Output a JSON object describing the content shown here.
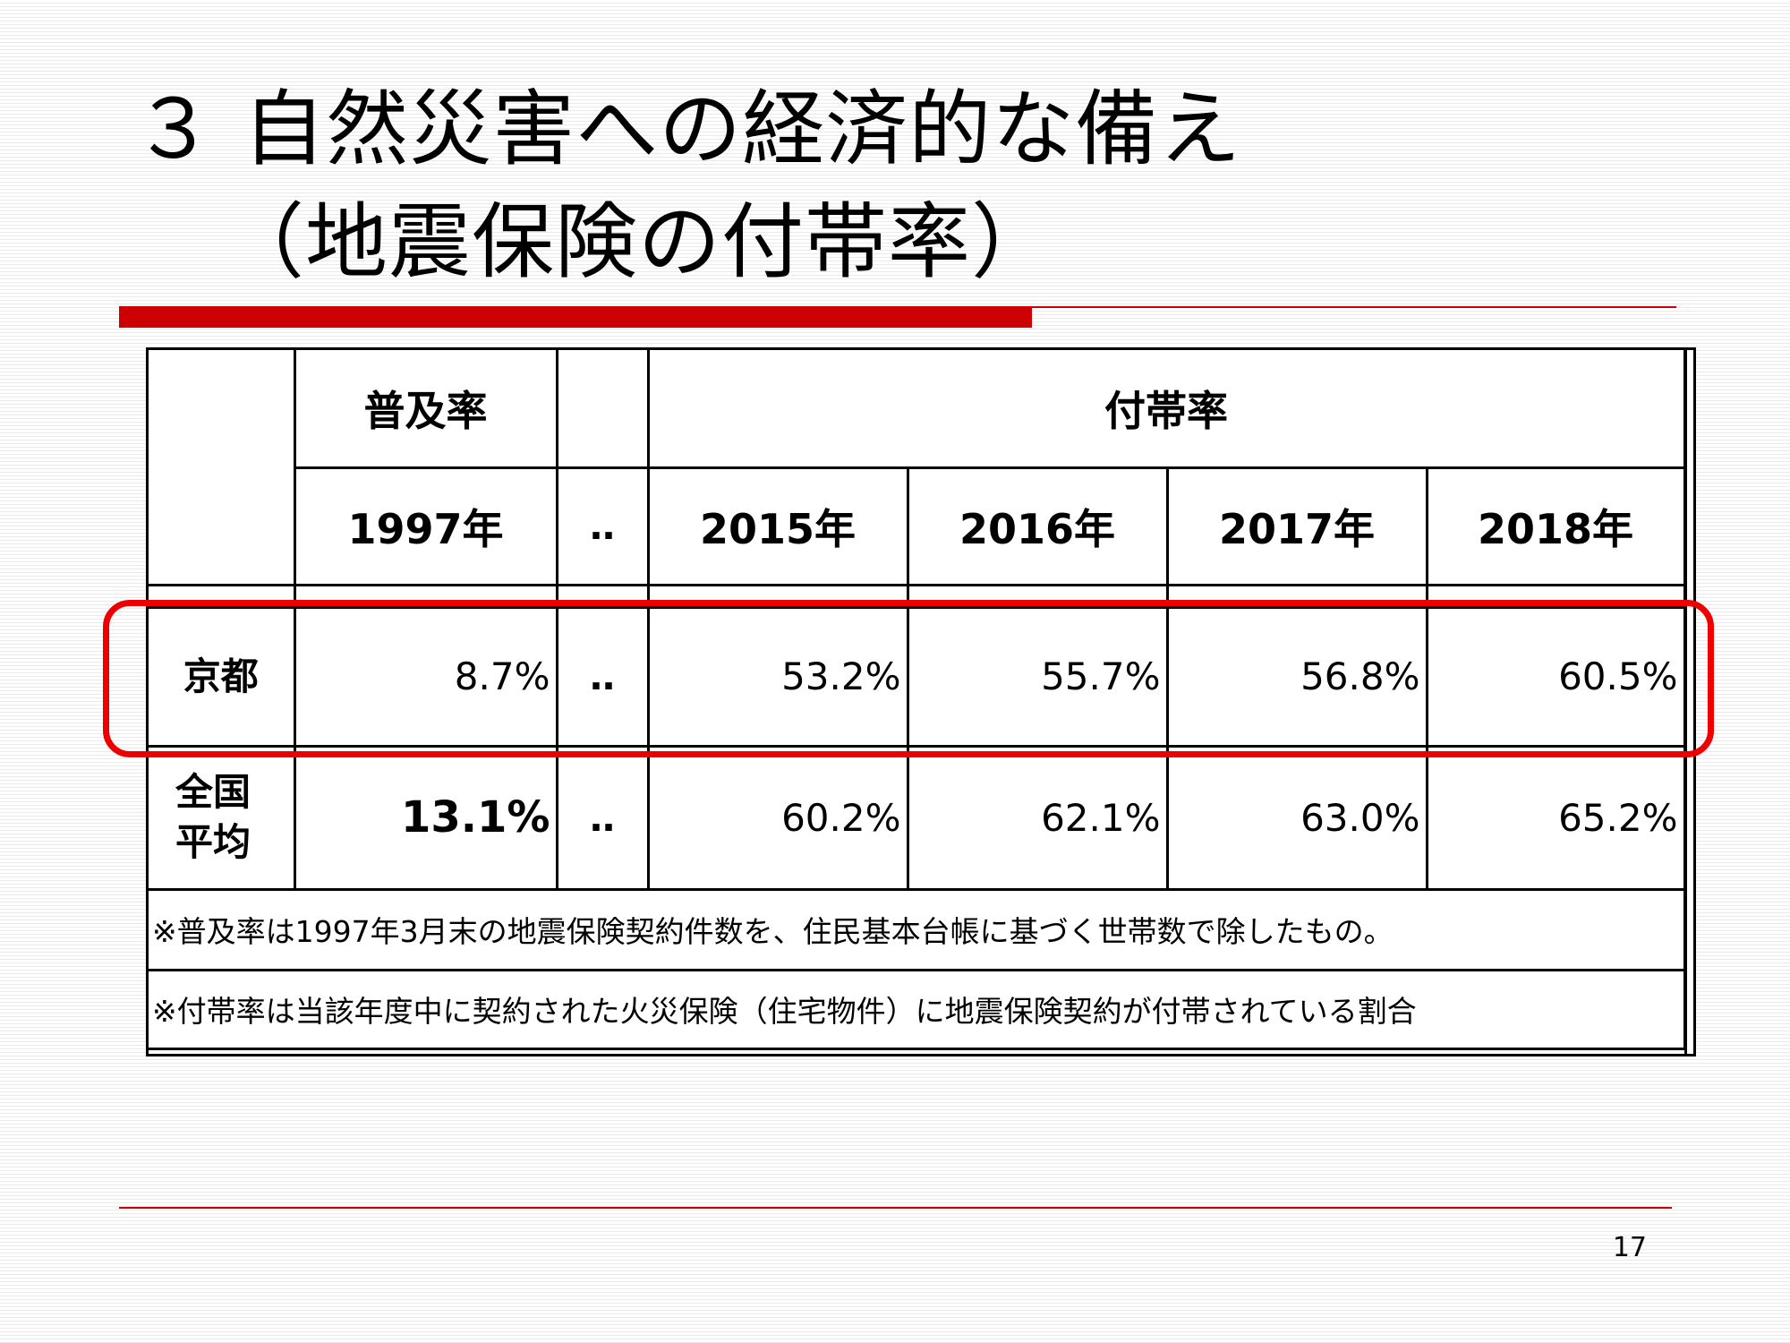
{
  "title": {
    "line1": "３ 自然災害への経済的な備え",
    "line2": "（地震保険の付帯率）"
  },
  "table": {
    "header_fukyu": "普及率",
    "header_futai": "付帯率",
    "years": [
      "1997年",
      "‥",
      "2015年",
      "2016年",
      "2017年",
      "2018年"
    ],
    "rows": [
      {
        "label": "京都",
        "values": [
          "8.7%",
          "‥",
          "53.2%",
          "55.7%",
          "56.8%",
          "60.5%"
        ]
      },
      {
        "label": "全国平均",
        "values": [
          "13.1%",
          "‥",
          "60.2%",
          "62.1%",
          "63.0%",
          "65.2%"
        ]
      }
    ],
    "notes": [
      "※普及率は1997年3月末の地震保険契約件数を、住民基本台帳に基づく世帯数で除したもの。",
      "※付帯率は当該年度中に契約された火災保険（住宅物件）に地震保険契約が付帯されている割合"
    ]
  },
  "colors": {
    "accent": "#cc0000",
    "highlight": "#ee0000"
  },
  "page_number": "17"
}
